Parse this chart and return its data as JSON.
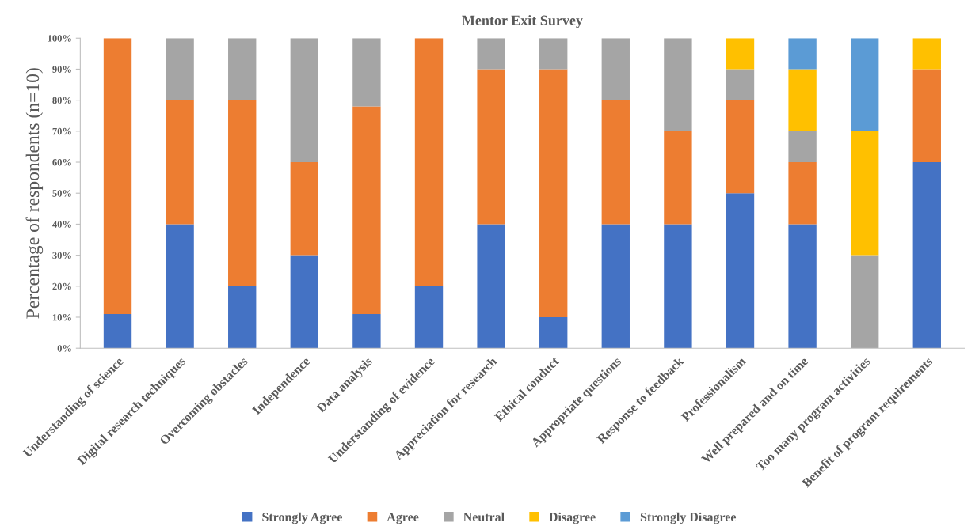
{
  "chart_data": {
    "type": "bar",
    "title": "Mentor Exit Survey",
    "ylabel": "Percentage of respondents (n=10)",
    "categories": [
      "Understanding of science",
      "Digital research techniques",
      "Overcoming obstacles",
      "Independence",
      "Data analysis",
      "Understanding of evidence",
      "Appreciation for research",
      "Ethical conduct",
      "Appropriate questions",
      "Response to feedback",
      "Professionalism",
      "Well prepared and on time",
      "Too many program activities",
      "Benefit of program requirements"
    ],
    "stacked": true,
    "series": [
      {
        "name": "Strongly Agree",
        "color": "#4472c4",
        "values": [
          11,
          40,
          20,
          30,
          11,
          20,
          40,
          10,
          40,
          40,
          50,
          40,
          0,
          60
        ]
      },
      {
        "name": "Agree",
        "color": "#ed7d31",
        "values": [
          89,
          40,
          60,
          30,
          67,
          80,
          50,
          80,
          40,
          30,
          30,
          20,
          0,
          30
        ]
      },
      {
        "name": "Neutral",
        "color": "#a5a5a5",
        "values": [
          0,
          20,
          20,
          40,
          22,
          0,
          10,
          10,
          20,
          30,
          10,
          10,
          30,
          0
        ]
      },
      {
        "name": "Disagree",
        "color": "#ffc000",
        "values": [
          0,
          0,
          0,
          0,
          0,
          0,
          0,
          0,
          0,
          0,
          10,
          20,
          40,
          10
        ]
      },
      {
        "name": "Strongly Disagree",
        "color": "#5b9bd5",
        "values": [
          0,
          0,
          0,
          0,
          0,
          0,
          0,
          0,
          0,
          0,
          0,
          10,
          30,
          0
        ]
      }
    ],
    "ylim": [
      0,
      100
    ],
    "yticks": [
      {
        "value": 0,
        "label": "0%"
      },
      {
        "value": 10,
        "label": "10%"
      },
      {
        "value": 20,
        "label": "20%"
      },
      {
        "value": 30,
        "label": "30%"
      },
      {
        "value": 40,
        "label": "40%"
      },
      {
        "value": 50,
        "label": "50%"
      },
      {
        "value": 60,
        "label": "60%"
      },
      {
        "value": 70,
        "label": "70%"
      },
      {
        "value": 80,
        "label": "80%"
      },
      {
        "value": 90,
        "label": "90%"
      },
      {
        "value": 100,
        "label": "100%"
      }
    ],
    "grid": false,
    "legend": "bottom"
  }
}
